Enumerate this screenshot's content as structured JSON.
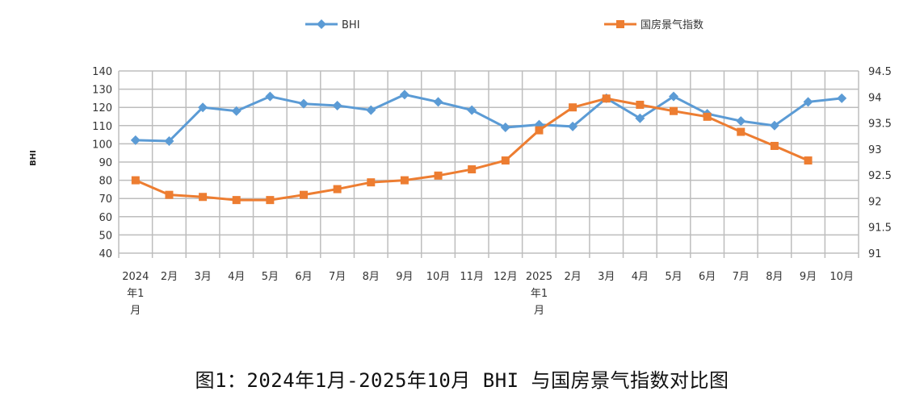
{
  "chart_data": {
    "type": "line",
    "categories": [
      "2024年1月",
      "2月",
      "3月",
      "4月",
      "5月",
      "6月",
      "7月",
      "8月",
      "9月",
      "10月",
      "11月",
      "12月",
      "2025年1月",
      "2月",
      "3月",
      "4月",
      "5月",
      "6月",
      "7月",
      "8月",
      "9月",
      "10月"
    ],
    "series": [
      {
        "name": "BHI",
        "axis": "left",
        "color": "#5b9bd5",
        "marker": "diamond",
        "values": [
          102,
          101.5,
          120,
          118,
          126,
          122,
          121,
          118.5,
          127,
          123,
          118.5,
          109,
          110.5,
          109.5,
          125,
          114,
          126,
          116.5,
          112.5,
          110,
          123,
          125
        ]
      },
      {
        "name": "国房景气指数",
        "axis": "right",
        "color": "#ed7d31",
        "marker": "square",
        "values": [
          92.4,
          92.12,
          92.08,
          92.02,
          92.02,
          92.12,
          92.23,
          92.36,
          92.4,
          92.49,
          92.61,
          92.78,
          93.36,
          93.8,
          93.97,
          93.85,
          93.73,
          93.62,
          93.33,
          93.06,
          92.78,
          null
        ]
      }
    ],
    "ylabel": "BHI",
    "ylim": [
      40,
      140
    ],
    "yticks": [
      "40",
      "50",
      "60",
      "70",
      "80",
      "90",
      "100",
      "110",
      "120",
      "130",
      "140"
    ],
    "y2lim": [
      91,
      94.5
    ],
    "y2ticks": [
      "91",
      "91.5",
      "92",
      "92.5",
      "93",
      "93.5",
      "94",
      "94.5"
    ],
    "grid": true,
    "legend": "top"
  },
  "caption": "图1：2024年1月-2025年10月 BHI 与国房景气指数对比图"
}
